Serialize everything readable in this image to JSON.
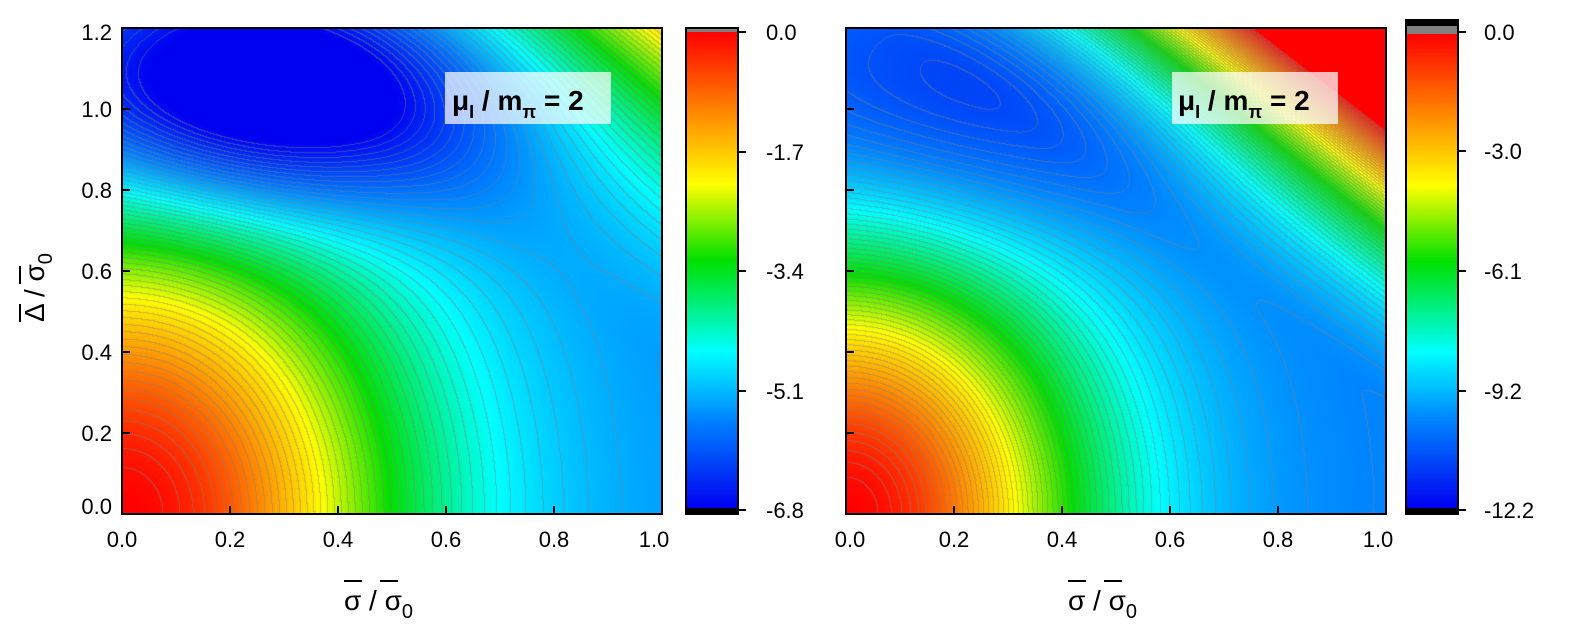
{
  "chart_data": [
    {
      "type": "heatmap",
      "title": "",
      "annotation": {
        "main": "μ",
        "sub1": "I",
        "mid": " / m",
        "sub2": "π",
        "tail": " = 2"
      },
      "xlabel": {
        "num": "σ",
        "den": "σ",
        "den_sub": "0"
      },
      "ylabel": {
        "num": "Δ",
        "den": "σ",
        "den_sub": "0"
      },
      "xlim": [
        0.0,
        1.0
      ],
      "ylim": [
        0.0,
        1.2
      ],
      "x_ticks": [
        "0.0",
        "0.2",
        "0.4",
        "0.6",
        "0.8",
        "1.0"
      ],
      "y_ticks": [
        "0.0",
        "0.2",
        "0.4",
        "0.6",
        "0.8",
        "1.0",
        "1.2"
      ],
      "minimum": {
        "x": 0.25,
        "y": 1.03
      },
      "colorbar": {
        "range": [
          -6.8,
          0.0
        ],
        "ticks": [
          "0.0",
          "-1.7",
          "-3.4",
          "-5.1",
          "-6.8"
        ]
      }
    },
    {
      "type": "heatmap",
      "title": "",
      "annotation": {
        "main": "μ",
        "sub1": "I",
        "mid": " / m",
        "sub2": "π",
        "tail": " = 2"
      },
      "xlabel": {
        "num": "σ",
        "den": "σ",
        "den_sub": "0"
      },
      "xlim": [
        0.0,
        1.0
      ],
      "ylim": [
        0.0,
        1.2
      ],
      "x_ticks": [
        "0.0",
        "0.2",
        "0.4",
        "0.6",
        "0.8",
        "1.0"
      ],
      "minimum": {
        "x": 0.18,
        "y": 0.98
      },
      "colorbar": {
        "range": [
          -12.2,
          0.0
        ],
        "ticks": [
          "0.0",
          "-3.0",
          "-6.1",
          "-9.2",
          "-12.2"
        ]
      }
    }
  ],
  "colors": {
    "scale": [
      "#000000",
      "#0000f0",
      "#0080ff",
      "#00ffff",
      "#00e000",
      "#ffff00",
      "#ff8000",
      "#ff0000",
      "#808080"
    ]
  }
}
